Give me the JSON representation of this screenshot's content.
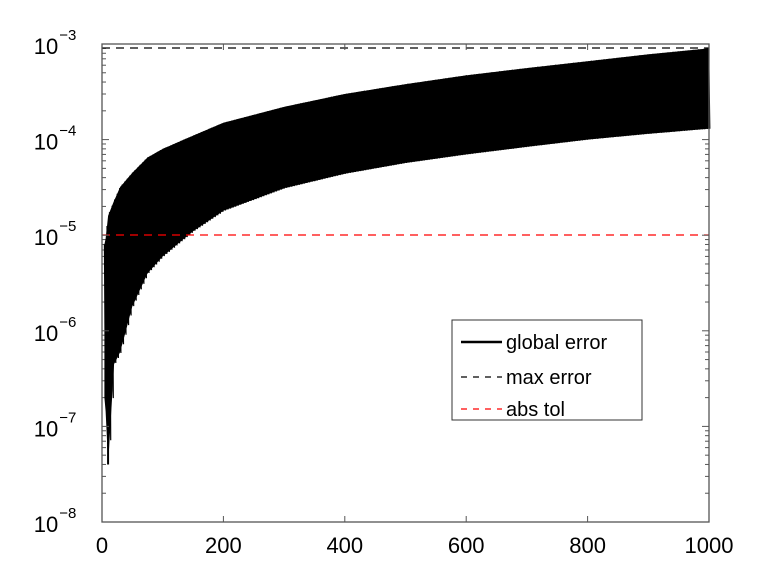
{
  "chart_data": {
    "type": "line",
    "title": "",
    "xlabel": "",
    "ylabel": "",
    "xscale": "linear",
    "yscale": "log",
    "xlim": [
      0,
      1000
    ],
    "ylim": [
      1e-08,
      0.001
    ],
    "grid": false,
    "x_ticks": [
      "0",
      "200",
      "400",
      "600",
      "800",
      "1000"
    ],
    "y_ticks": [
      {
        "base": "10",
        "exp": "−8"
      },
      {
        "base": "10",
        "exp": "−7"
      },
      {
        "base": "10",
        "exp": "−6"
      },
      {
        "base": "10",
        "exp": "−5"
      },
      {
        "base": "10",
        "exp": "−4"
      },
      {
        "base": "10",
        "exp": "−3"
      }
    ],
    "legend_position": "lower right (inside)",
    "series": [
      {
        "name": "global error",
        "style": "solid",
        "color": "#000000",
        "description": "rapidly oscillating band; envelope upper and lower bounds",
        "x": [
          5,
          10,
          20,
          30,
          50,
          75,
          100,
          150,
          200,
          300,
          400,
          500,
          600,
          700,
          800,
          900,
          1000
        ],
        "upper": [
          8e-06,
          1.6e-05,
          2.3e-05,
          3.2e-05,
          4.5e-05,
          6.5e-05,
          8e-05,
          0.00011,
          0.00015,
          0.00022,
          0.0003,
          0.00038,
          0.00047,
          0.00056,
          0.00066,
          0.00078,
          0.0009
        ],
        "lower": [
          2e-07,
          4e-08,
          4.5e-07,
          6e-07,
          1.8e-06,
          4e-06,
          6e-06,
          1.1e-05,
          1.8e-05,
          3.1e-05,
          4.4e-05,
          5.7e-05,
          7e-05,
          8.4e-05,
          0.0001,
          0.000115,
          0.00013
        ]
      },
      {
        "name": "max error",
        "style": "dashed",
        "color": "#000000",
        "x": [
          0,
          1000
        ],
        "values": [
          0.0009,
          0.0009
        ]
      },
      {
        "name": "abs tol",
        "style": "dashed",
        "color": "#ff0000",
        "x": [
          0,
          1000
        ],
        "values": [
          1e-05,
          1e-05
        ]
      }
    ]
  },
  "legend": {
    "items": [
      {
        "label": "global error"
      },
      {
        "label": "max error"
      },
      {
        "label": "abs tol"
      }
    ]
  },
  "colors": {
    "axis": "#555555",
    "line": "#000000",
    "abs_tol": "#ff0000"
  }
}
